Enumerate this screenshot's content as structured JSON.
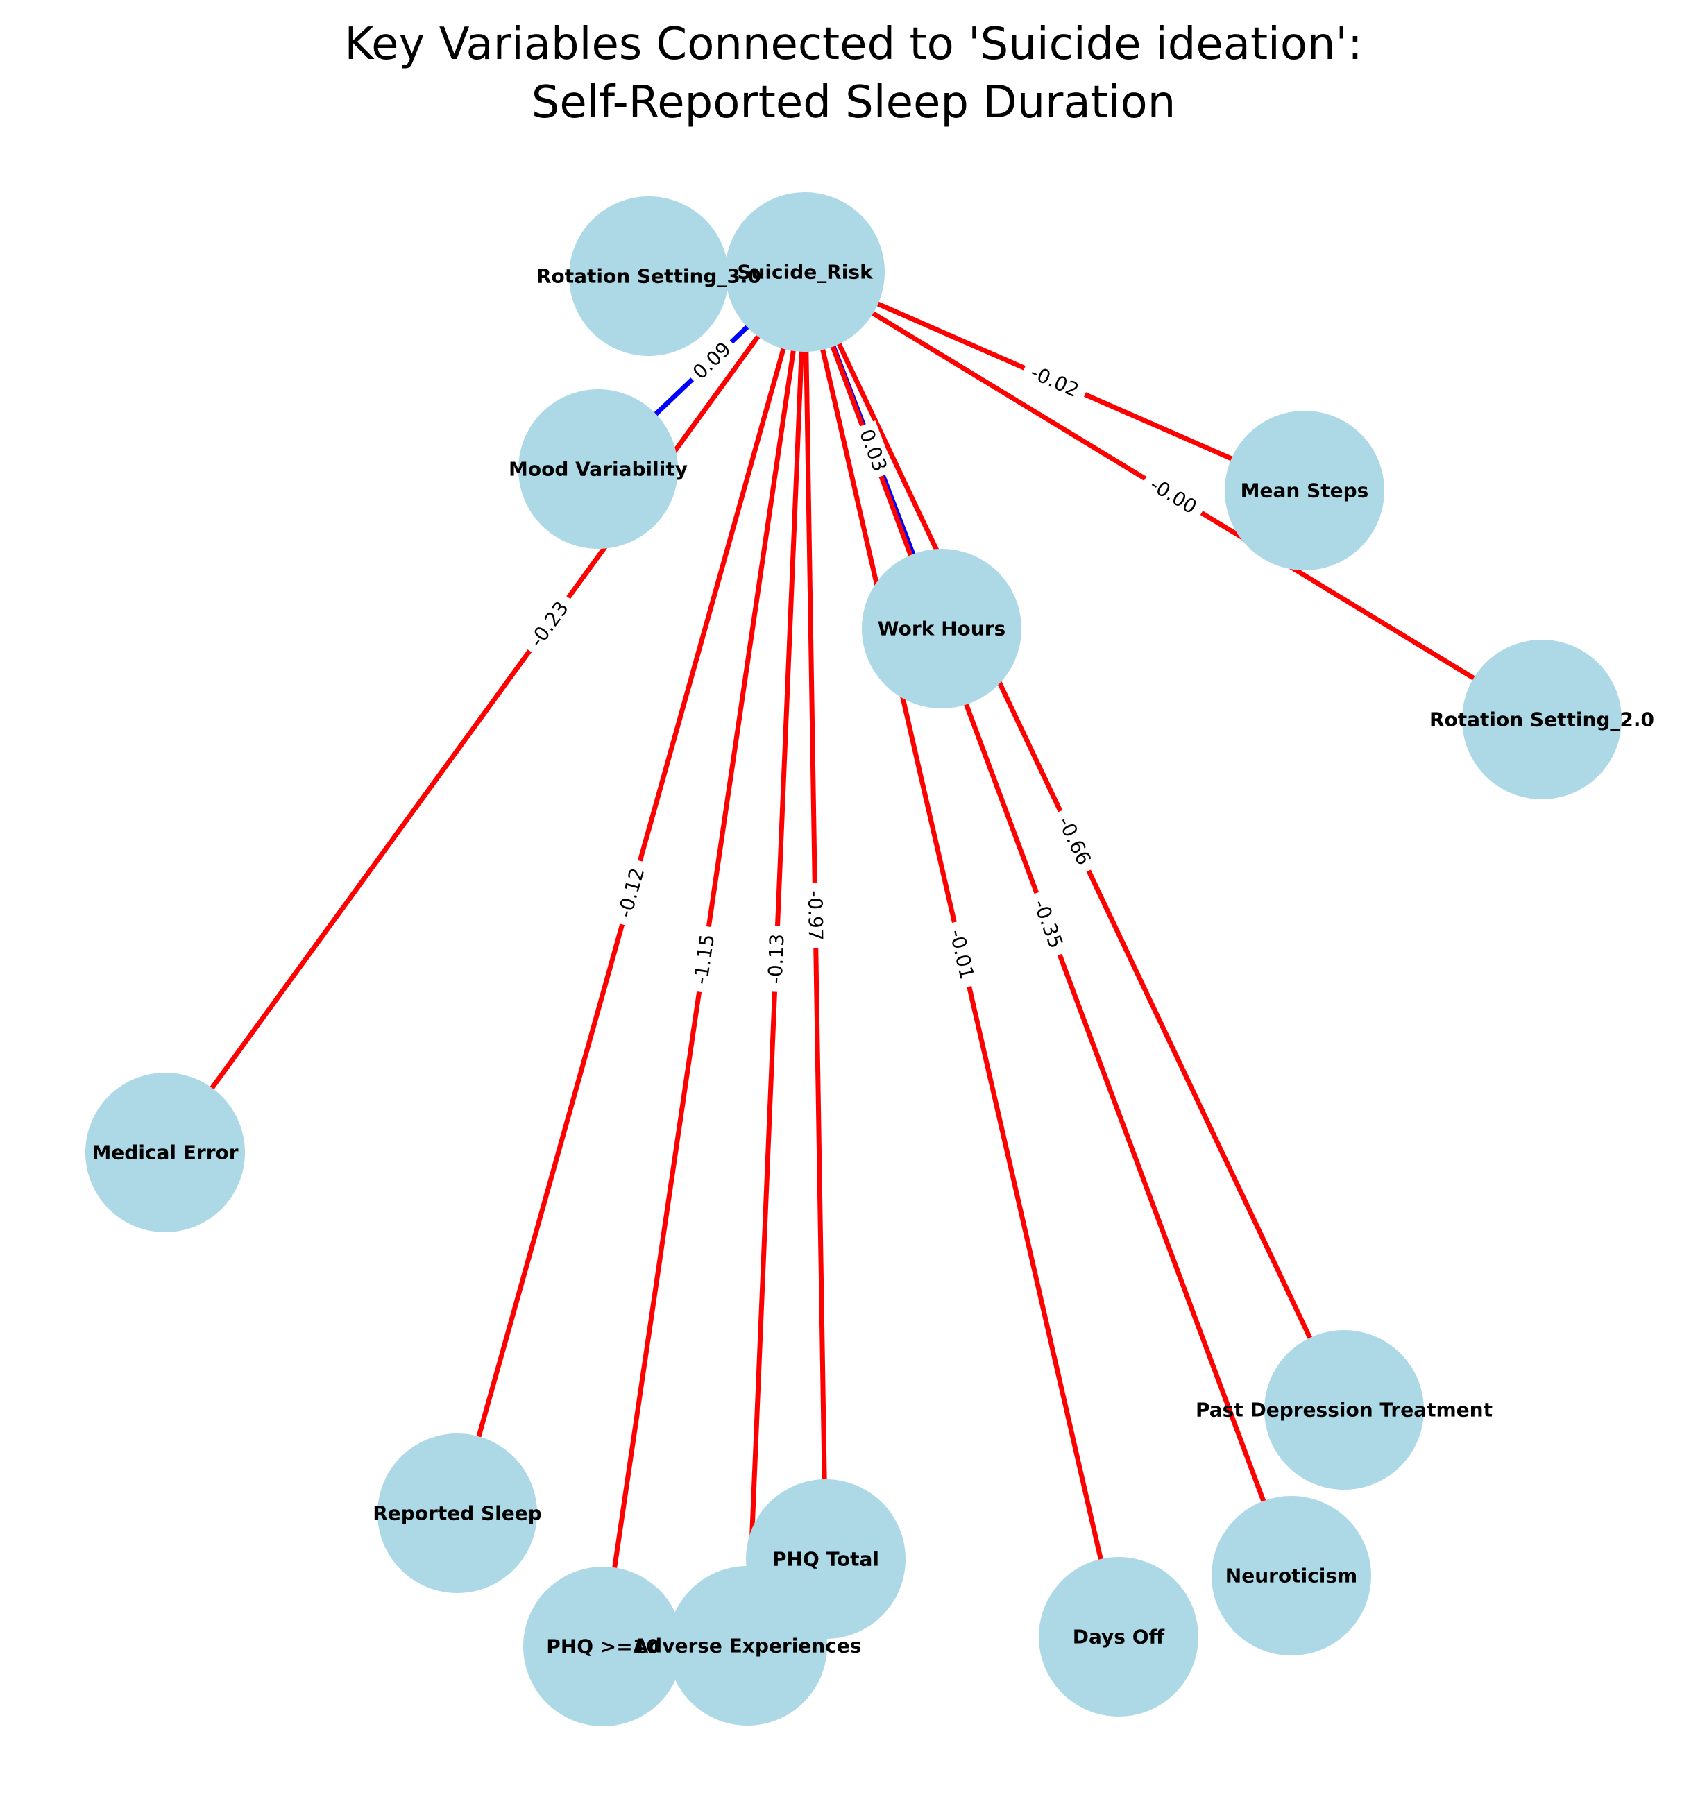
{
  "title": {
    "line1": "Key Variables Connected to 'Suicide ideation':",
    "line2": "Self-Reported Sleep Duration"
  },
  "colors": {
    "node_fill": "#add8e6",
    "negative_edge": "#ff0000",
    "positive_edge": "#0000ff",
    "text": "#000000"
  },
  "nodes": [
    {
      "id": "suicide_risk",
      "label": "Suicide_Risk"
    },
    {
      "id": "rotation3",
      "label": "Rotation Setting_3.0"
    },
    {
      "id": "mood",
      "label": "Mood Variability"
    },
    {
      "id": "mean_steps",
      "label": "Mean Steps"
    },
    {
      "id": "work_hours",
      "label": "Work Hours"
    },
    {
      "id": "rotation2",
      "label": "Rotation Setting_2.0"
    },
    {
      "id": "medical_error",
      "label": "Medical Error"
    },
    {
      "id": "past_dep",
      "label": "Past Depression Treatment"
    },
    {
      "id": "reported_sleep",
      "label": "Reported Sleep"
    },
    {
      "id": "phq_total",
      "label": "PHQ Total"
    },
    {
      "id": "neuroticism",
      "label": "Neuroticism"
    },
    {
      "id": "phq10",
      "label": "PHQ >=10"
    },
    {
      "id": "adverse",
      "label": "Adverse Experiences"
    },
    {
      "id": "days_off",
      "label": "Days Off"
    }
  ],
  "edges": [
    {
      "source": "suicide_risk",
      "target": "mood",
      "weight": "0.09",
      "sign": "positive"
    },
    {
      "source": "suicide_risk",
      "target": "medical_error",
      "weight": "-0.23",
      "sign": "negative"
    },
    {
      "source": "suicide_risk",
      "target": "reported_sleep",
      "weight": "-0.12",
      "sign": "negative"
    },
    {
      "source": "suicide_risk",
      "target": "phq10",
      "weight": "-1.15",
      "sign": "negative"
    },
    {
      "source": "suicide_risk",
      "target": "adverse",
      "weight": "-0.13",
      "sign": "negative"
    },
    {
      "source": "suicide_risk",
      "target": "phq_total",
      "weight": "-0.97",
      "sign": "negative"
    },
    {
      "source": "suicide_risk",
      "target": "days_off",
      "weight": "-0.01",
      "sign": "negative"
    },
    {
      "source": "suicide_risk",
      "target": "work_hours",
      "weight": "0.03",
      "sign": "positive"
    },
    {
      "source": "suicide_risk",
      "target": "neuroticism",
      "weight": "-0.35",
      "sign": "negative"
    },
    {
      "source": "suicide_risk",
      "target": "past_dep",
      "weight": "-0.66",
      "sign": "negative"
    },
    {
      "source": "suicide_risk",
      "target": "mean_steps",
      "weight": "-0.02",
      "sign": "negative"
    },
    {
      "source": "suicide_risk",
      "target": "rotation2",
      "weight": "-0.00",
      "sign": "negative"
    }
  ]
}
